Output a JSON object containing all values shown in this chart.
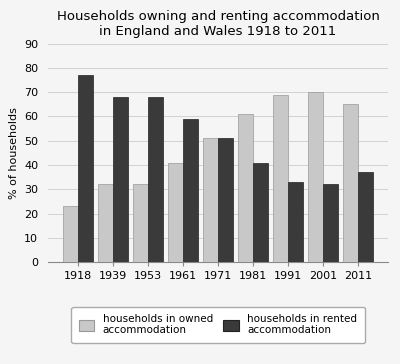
{
  "title": "Households owning and renting accommodation\nin England and Wales 1918 to 2011",
  "years": [
    "1918",
    "1939",
    "1953",
    "1961",
    "1971",
    "1981",
    "1991",
    "2001",
    "2011"
  ],
  "owned": [
    23,
    32,
    32,
    41,
    51,
    61,
    69,
    70,
    65
  ],
  "rented": [
    77,
    68,
    68,
    59,
    51,
    41,
    33,
    32,
    37
  ],
  "owned_color": "#c8c8c8",
  "rented_color": "#3a3a3a",
  "ylabel": "% of households",
  "ylim": [
    0,
    90
  ],
  "yticks": [
    0,
    10,
    20,
    30,
    40,
    50,
    60,
    70,
    80,
    90
  ],
  "legend_owned": "households in owned\naccommodation",
  "legend_rented": "households in rented\naccommodation",
  "title_fontsize": 9.5,
  "axis_fontsize": 8,
  "tick_fontsize": 8,
  "legend_fontsize": 7.5,
  "bar_width": 0.42,
  "background_color": "#f5f5f5"
}
